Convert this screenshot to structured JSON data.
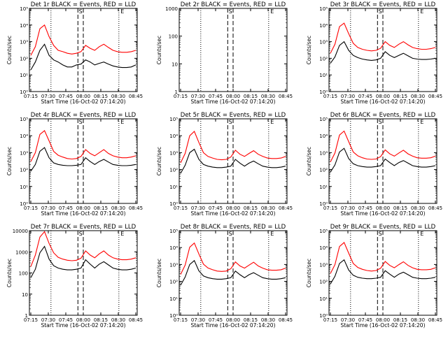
{
  "time_ticks": [
    "07:15",
    "07:30",
    "07:45",
    "08:00",
    "08:15",
    "08:30",
    "08:45"
  ],
  "xlabel": "Start Time (16-Oct-02 07:14:20)",
  "ylabel": "Counts/sec",
  "colors": {
    "events": "#000000",
    "lld": "#ff0000"
  },
  "markers": {
    "saa_label": "S",
    "eclipse_label": "E"
  },
  "chart_data": [
    {
      "type": "line",
      "title": "Det 1r BLACK = Events, RED = LLD",
      "ylabel": "Counts/sec",
      "ylim": [
        1,
        100000
      ],
      "log_y": true,
      "ytick_style": "power",
      "ylabels": [
        "10⁰",
        "10¹",
        "10²",
        "10³",
        "10⁴",
        "10⁵"
      ],
      "series": [
        {
          "name": "BLACK = Events",
          "values": [
            20,
            60,
            300,
            700,
            150,
            80,
            60,
            40,
            30,
            30,
            40,
            45,
            80,
            60,
            40,
            50,
            60,
            45,
            35,
            30,
            28,
            28,
            30,
            40
          ]
        },
        {
          "name": "RED = LLD",
          "values": [
            150,
            500,
            6000,
            10000,
            2000,
            600,
            300,
            250,
            200,
            180,
            200,
            250,
            600,
            400,
            300,
            500,
            700,
            450,
            300,
            250,
            230,
            230,
            250,
            300
          ]
        }
      ]
    },
    {
      "type": "line",
      "title": "Det 2r BLACK = Events, RED = LLD",
      "ylabel": "Counts/sec",
      "ylim": [
        1,
        1000
      ],
      "log_y": true,
      "ytick_style": "plain",
      "ylabels": [
        "1",
        "10",
        "100",
        "1000"
      ],
      "series": []
    },
    {
      "type": "line",
      "title": "Det 3r BLACK = Events, RED = LLD",
      "ylabel": "Counts/sec",
      "ylim": [
        1,
        100000
      ],
      "log_y": true,
      "ytick_style": "power",
      "ylabels": [
        "10⁰",
        "10¹",
        "10²",
        "10³",
        "10⁴",
        "10⁵"
      ],
      "series": [
        {
          "name": "BLACK = Events",
          "values": [
            50,
            120,
            600,
            1000,
            300,
            150,
            110,
            90,
            80,
            75,
            80,
            100,
            250,
            150,
            110,
            150,
            200,
            140,
            100,
            90,
            85,
            85,
            90,
            100
          ]
        },
        {
          "name": "RED = LLD",
          "values": [
            200,
            700,
            8000,
            13000,
            3000,
            800,
            450,
            350,
            300,
            280,
            300,
            400,
            1000,
            600,
            450,
            700,
            1000,
            650,
            450,
            380,
            350,
            350,
            380,
            450
          ]
        }
      ]
    },
    {
      "type": "line",
      "title": "Det 4r BLACK = Events, RED = LLD",
      "ylabel": "Counts/sec",
      "ylim": [
        1,
        100000
      ],
      "log_y": true,
      "ytick_style": "power",
      "ylabels": [
        "10⁰",
        "10¹",
        "10²",
        "10³",
        "10⁴",
        "10⁵"
      ],
      "series": [
        {
          "name": "BLACK = Events",
          "values": [
            80,
            200,
            1200,
            2000,
            500,
            250,
            200,
            180,
            170,
            170,
            180,
            200,
            500,
            300,
            200,
            300,
            400,
            280,
            200,
            180,
            170,
            170,
            180,
            200
          ]
        },
        {
          "name": "RED = LLD",
          "values": [
            300,
            1000,
            12000,
            20000,
            5000,
            1200,
            700,
            550,
            450,
            420,
            450,
            600,
            1500,
            900,
            650,
            1000,
            1500,
            900,
            650,
            550,
            500,
            500,
            550,
            650
          ]
        }
      ]
    },
    {
      "type": "line",
      "title": "Det 5r BLACK = Events, RED = LLD",
      "ylabel": "Counts/sec",
      "ylim": [
        1,
        100000
      ],
      "log_y": true,
      "ytick_style": "power",
      "ylabels": [
        "10⁰",
        "10¹",
        "10²",
        "10³",
        "10⁴",
        "10⁵"
      ],
      "series": [
        {
          "name": "BLACK = Events",
          "values": [
            60,
            180,
            1000,
            1600,
            400,
            200,
            160,
            140,
            130,
            130,
            140,
            160,
            400,
            240,
            160,
            240,
            320,
            220,
            160,
            140,
            130,
            130,
            140,
            160
          ]
        },
        {
          "name": "RED = LLD",
          "values": [
            250,
            900,
            10000,
            18000,
            4000,
            1000,
            600,
            480,
            400,
            380,
            400,
            550,
            1400,
            800,
            600,
            900,
            1300,
            800,
            600,
            480,
            450,
            450,
            480,
            600
          ]
        }
      ]
    },
    {
      "type": "line",
      "title": "Det 6r BLACK = Events, RED = LLD",
      "ylabel": "Counts/sec",
      "ylim": [
        1,
        100000
      ],
      "log_y": true,
      "ytick_style": "power",
      "ylabels": [
        "10⁰",
        "10¹",
        "10²",
        "10³",
        "10⁴",
        "10⁵"
      ],
      "series": [
        {
          "name": "BLACK = Events",
          "values": [
            70,
            190,
            1100,
            1800,
            450,
            220,
            170,
            150,
            140,
            140,
            150,
            170,
            420,
            260,
            170,
            260,
            340,
            240,
            170,
            150,
            140,
            140,
            150,
            170
          ]
        },
        {
          "name": "RED = LLD",
          "values": [
            280,
            950,
            11000,
            19000,
            4500,
            1100,
            650,
            500,
            420,
            400,
            420,
            580,
            1450,
            850,
            620,
            950,
            1400,
            850,
            620,
            500,
            470,
            470,
            500,
            620
          ]
        }
      ]
    },
    {
      "type": "line",
      "title": "Det 7r BLACK = Events, RED = LLD",
      "ylabel": "Counts/sec",
      "ylim": [
        1,
        10000
      ],
      "log_y": true,
      "ytick_style": "plain",
      "ylabels": [
        "1",
        "10",
        "100",
        "1000",
        "10000"
      ],
      "series": [
        {
          "name": "BLACK = Events",
          "values": [
            60,
            150,
            900,
            1800,
            450,
            220,
            170,
            150,
            140,
            140,
            150,
            170,
            420,
            260,
            170,
            260,
            340,
            240,
            170,
            150,
            140,
            140,
            150,
            170
          ]
        },
        {
          "name": "RED = LLD",
          "values": [
            200,
            700,
            5000,
            9000,
            2500,
            900,
            550,
            450,
            400,
            380,
            400,
            500,
            1100,
            700,
            520,
            800,
            1100,
            700,
            520,
            450,
            420,
            420,
            450,
            520
          ]
        }
      ]
    },
    {
      "type": "line",
      "title": "Det 8r BLACK = Events, RED = LLD",
      "ylabel": "Counts/sec",
      "ylim": [
        1,
        100000
      ],
      "log_y": true,
      "ytick_style": "power",
      "ylabels": [
        "10⁰",
        "10¹",
        "10²",
        "10³",
        "10⁴",
        "10⁵"
      ],
      "series": [
        {
          "name": "BLACK = Events",
          "values": [
            60,
            180,
            1000,
            1700,
            420,
            210,
            165,
            145,
            135,
            135,
            145,
            165,
            410,
            250,
            165,
            250,
            330,
            230,
            165,
            145,
            135,
            135,
            145,
            165
          ]
        },
        {
          "name": "RED = LLD",
          "values": [
            260,
            920,
            10500,
            18500,
            4200,
            1050,
            620,
            490,
            410,
            390,
            410,
            560,
            1420,
            820,
            610,
            920,
            1350,
            820,
            610,
            490,
            460,
            460,
            490,
            610
          ]
        }
      ]
    },
    {
      "type": "line",
      "title": "Det 9r BLACK = Events, RED = LLD",
      "ylabel": "Counts/sec",
      "ylim": [
        1,
        100000
      ],
      "log_y": true,
      "ytick_style": "power",
      "ylabels": [
        "10⁰",
        "10¹",
        "10²",
        "10³",
        "10⁴",
        "10⁵"
      ],
      "series": [
        {
          "name": "BLACK = Events",
          "values": [
            70,
            200,
            1150,
            1900,
            470,
            230,
            175,
            155,
            145,
            145,
            155,
            175,
            430,
            270,
            175,
            270,
            350,
            250,
            175,
            155,
            145,
            145,
            155,
            175
          ]
        },
        {
          "name": "RED = LLD",
          "values": [
            290,
            980,
            11500,
            20000,
            4700,
            1150,
            670,
            520,
            440,
            410,
            440,
            600,
            1500,
            880,
            640,
            980,
            1450,
            880,
            640,
            520,
            490,
            490,
            520,
            640
          ]
        }
      ]
    }
  ]
}
